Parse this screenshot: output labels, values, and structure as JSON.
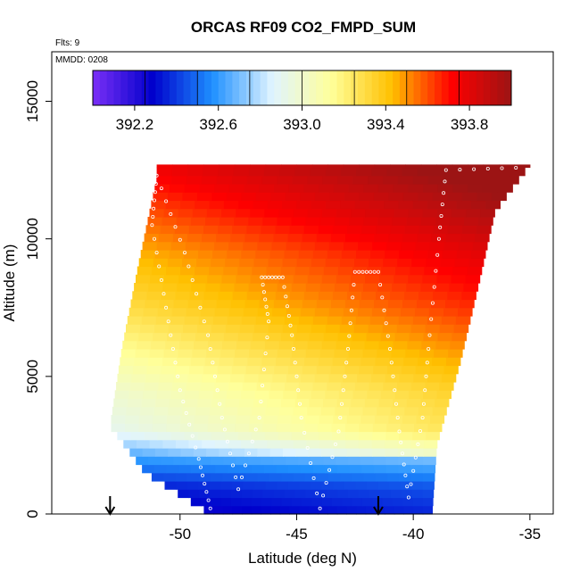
{
  "chart_data": {
    "type": "heatmap",
    "title": "ORCAS RF09 CO2_FMPD_SUM",
    "corner_text": "Flts: 9",
    "inset_text": "MMDD: 0208",
    "xlabel": "Latitude (deg N)",
    "ylabel": "Altitude (m)",
    "xlim": [
      -55.5,
      -34
    ],
    "ylim": [
      0,
      16800
    ],
    "x_ticks": [
      -50,
      -45,
      -40,
      -35
    ],
    "y_ticks": [
      0,
      5000,
      10000,
      15000
    ],
    "colorbar": {
      "range": [
        392.0,
        394.0
      ],
      "tick_values": [
        392.2,
        392.6,
        393.0,
        393.4,
        393.8
      ],
      "tick_labels": [
        "392.2",
        "392.6",
        "393.0",
        "393.4",
        "393.8"
      ],
      "colors": [
        "#7b2ff7",
        "#0000cc",
        "#1e90ff",
        "#e0f4ff",
        "#ffff99",
        "#ffc000",
        "#ff0000",
        "#9c1414"
      ]
    },
    "curtain": {
      "left_edge": [
        [
          -48.7,
          0
        ],
        [
          -51.5,
          1500
        ],
        [
          -53.0,
          3200
        ],
        [
          -52.5,
          6000
        ],
        [
          -51.8,
          9000
        ],
        [
          -51.0,
          12200
        ]
      ],
      "right_edge": [
        [
          -39.2,
          0
        ],
        [
          -39.0,
          2500
        ],
        [
          -38.0,
          5500
        ],
        [
          -37.3,
          8000
        ],
        [
          -36.5,
          11000
        ],
        [
          -35.0,
          12700
        ]
      ],
      "top": [
        [
          -51.0,
          12200
        ],
        [
          -45.0,
          12300
        ],
        [
          -40.0,
          12400
        ],
        [
          -38.6,
          12500
        ],
        [
          -35.0,
          12700
        ]
      ],
      "profile": [
        {
          "alt": 0,
          "value": 392.25
        },
        {
          "alt": 1000,
          "value": 392.35
        },
        {
          "alt": 2000,
          "value": 392.6
        },
        {
          "alt": 3000,
          "value": 392.9
        },
        {
          "alt": 4500,
          "value": 393.0
        },
        {
          "alt": 6000,
          "value": 393.15
        },
        {
          "alt": 7500,
          "value": 393.3
        },
        {
          "alt": 9500,
          "value": 393.45
        },
        {
          "alt": 11000,
          "value": 393.6
        },
        {
          "alt": 12500,
          "value": 393.75
        }
      ]
    },
    "flight_track": [
      [
        -48.7,
        200
      ],
      [
        -49.2,
        2000
      ],
      [
        -50.0,
        4500
      ],
      [
        -50.6,
        7500
      ],
      [
        -51.2,
        10500
      ],
      [
        -51.0,
        12300
      ],
      [
        -49.8,
        9500
      ],
      [
        -48.8,
        6500
      ],
      [
        -48.2,
        3500
      ],
      [
        -47.5,
        900
      ],
      [
        -46.6,
        3500
      ],
      [
        -46.2,
        7000
      ],
      [
        -46.5,
        8600
      ],
      [
        -45.6,
        8600
      ],
      [
        -45.2,
        6500
      ],
      [
        -44.8,
        3500
      ],
      [
        -44.0,
        200
      ],
      [
        -43.2,
        3000
      ],
      [
        -42.8,
        6000
      ],
      [
        -42.5,
        8800
      ],
      [
        -41.5,
        8800
      ],
      [
        -41.0,
        6000
      ],
      [
        -40.6,
        3000
      ],
      [
        -40.2,
        600
      ],
      [
        -39.6,
        3500
      ],
      [
        -39.3,
        6500
      ],
      [
        -38.9,
        10000
      ],
      [
        -38.6,
        12500
      ],
      [
        -35.0,
        12600
      ]
    ],
    "arrows_x": [
      -53.0,
      -41.5
    ]
  }
}
